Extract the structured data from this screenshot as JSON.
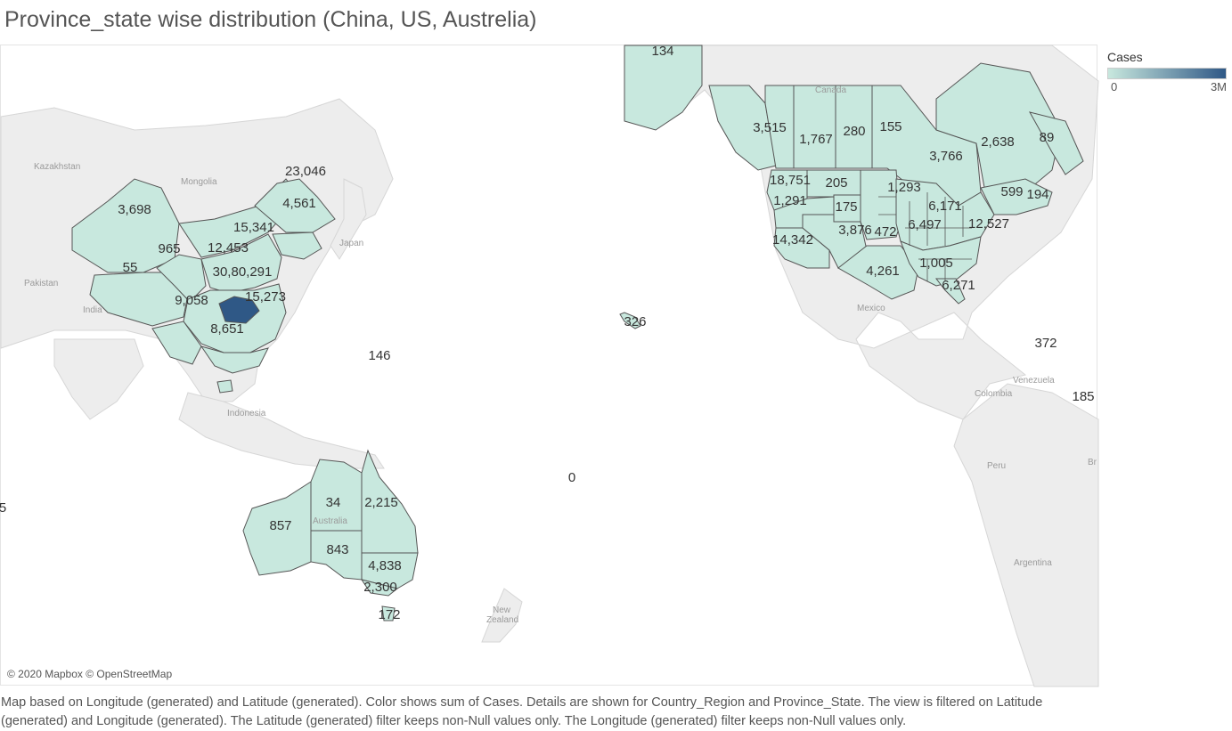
{
  "title": "Province_state wise distribution (China, US, Austrelia)",
  "legend": {
    "title": "Cases",
    "min_label": "0",
    "max_label": "3M",
    "min_color": "#c8e8de",
    "max_color": "#2f5886"
  },
  "attribution": "© 2020 Mapbox © OpenStreetMap",
  "caption": "Map based on Longitude (generated) and Latitude (generated).  Color shows sum of Cases.  Details are shown for Country_Region and Province_State. The view is filtered on Latitude (generated) and Longitude (generated). The Latitude (generated) filter keeps non-Null values only. The Longitude (generated) filter keeps non-Null values only.",
  "colors": {
    "region_fill": "#c8e8de",
    "hubei_fill": "#2f5886",
    "land": "#ededed",
    "border": "#555555"
  },
  "place_labels": {
    "kazakhstan": "Kazakhstan",
    "mongolia": "Mongolia",
    "japan": "Japan",
    "pakistan": "Pakistan",
    "india": "India",
    "indonesia": "Indonesia",
    "australia": "Australia",
    "new_zealand_1": "New",
    "new_zealand_2": "Zealand",
    "canada": "Canada",
    "mexico": "Mexico",
    "venezuela": "Venezuela",
    "colombia": "Colombia",
    "peru": "Peru",
    "argentina": "Argentina",
    "brazil_edge": "Br"
  },
  "values": {
    "alaska": "134",
    "hawaii": "326",
    "guam": "146",
    "pacific_zero": "0",
    "edge_left": "5",
    "puerto_rico": "372",
    "caribbean": "185",
    "xinjiang": "3,698",
    "tibet": "55",
    "qinghai": "965",
    "gansu": "12,453",
    "beijing": "15,341",
    "heilongjiang": "23,046",
    "jilin": "4,561",
    "hubei": "30,80,291",
    "yunnan": "9,058",
    "guangdong": "15,273",
    "hainan": "8,651",
    "bc": "3,515",
    "alberta": "1,767",
    "sask": "280",
    "manitoba": "155",
    "ontario": "3,766",
    "quebec": "2,638",
    "newfoundland": "89",
    "washington": "18,751",
    "montana": "205",
    "oregon": "1,291",
    "wyoming": "175",
    "california": "14,342",
    "colorado": "3,876",
    "kansas": "472",
    "minnesota": "1,293",
    "michigan": "6,171",
    "illinois": "6,497",
    "penn": "12,527",
    "vermont": "599",
    "maine": "194",
    "tennessee": "1,005",
    "florida": "6,271",
    "texas": "4,261",
    "nt_au": "34",
    "qld": "2,215",
    "wa_au": "857",
    "sa_au": "843",
    "nsw": "4,838",
    "vic": "2,300",
    "tas": "172"
  }
}
